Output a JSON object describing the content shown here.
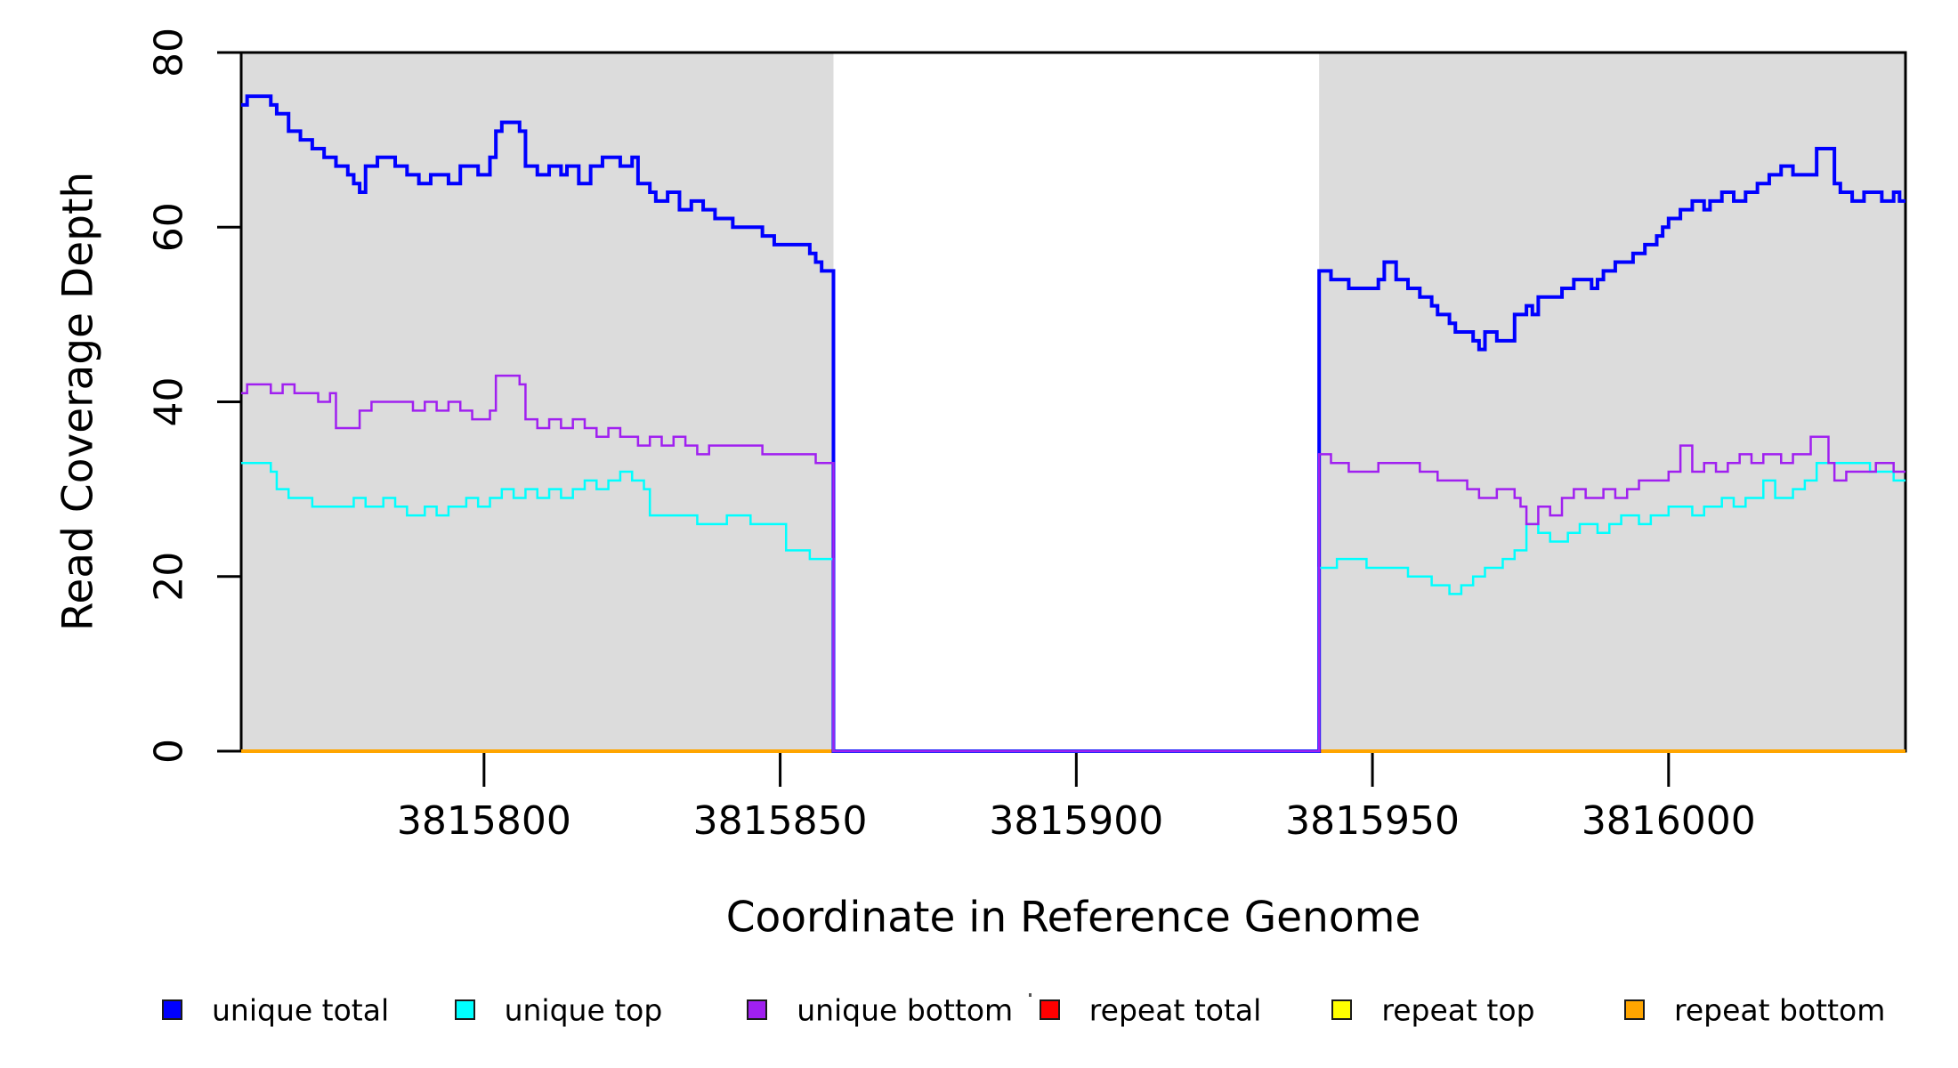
{
  "figure": {
    "background": "#FFFFFF"
  },
  "axes": {
    "y_title": "Read Coverage Depth",
    "x_title": "Coordinate in Reference Genome"
  },
  "legend": {
    "items": [
      {
        "label": "unique total",
        "color": "#0000FF"
      },
      {
        "label": "unique top",
        "color": "#00FFFF"
      },
      {
        "label": "unique bottom",
        "color": "#A020F0"
      },
      {
        "label": "repeat total",
        "color": "#FF0000"
      },
      {
        "label": "repeat top",
        "color": "#FFFF00"
      },
      {
        "label": "repeat bottom",
        "color": "#FFA500"
      }
    ]
  },
  "chart_data": {
    "type": "line",
    "subtype": "step",
    "title": "",
    "xlabel": "Coordinate in Reference Genome",
    "ylabel": "Read Coverage Depth",
    "x_range": [
      3815759,
      3816040
    ],
    "y_range": [
      0,
      80
    ],
    "x_ticks": [
      3815800,
      3815850,
      3815900,
      3815950,
      3816000
    ],
    "y_ticks": [
      0,
      20,
      40,
      60,
      80
    ],
    "grid": false,
    "legend_position": "bottom",
    "plot_background": "#FFFFFF",
    "highlight_regions": [
      {
        "start": 3815759,
        "end": 3815859,
        "color": "#DCDCDC"
      },
      {
        "start": 3815941,
        "end": 3816040,
        "color": "#DCDCDC"
      }
    ],
    "zero_coverage_gap": {
      "start": 3815859,
      "end": 3815941
    },
    "series": [
      {
        "name": "unique total",
        "color": "#0000FF",
        "line_width": 4,
        "points": [
          [
            3815759,
            74
          ],
          [
            3815760,
            75
          ],
          [
            3815764,
            74
          ],
          [
            3815765,
            73
          ],
          [
            3815767,
            71
          ],
          [
            3815769,
            70
          ],
          [
            3815771,
            69
          ],
          [
            3815773,
            68
          ],
          [
            3815775,
            67
          ],
          [
            3815777,
            66
          ],
          [
            3815778,
            65
          ],
          [
            3815779,
            64
          ],
          [
            3815780,
            67
          ],
          [
            3815782,
            68
          ],
          [
            3815785,
            67
          ],
          [
            3815787,
            66
          ],
          [
            3815789,
            65
          ],
          [
            3815791,
            66
          ],
          [
            3815794,
            65
          ],
          [
            3815796,
            67
          ],
          [
            3815799,
            66
          ],
          [
            3815801,
            68
          ],
          [
            3815802,
            71
          ],
          [
            3815803,
            72
          ],
          [
            3815806,
            71
          ],
          [
            3815807,
            67
          ],
          [
            3815809,
            66
          ],
          [
            3815811,
            67
          ],
          [
            3815813,
            66
          ],
          [
            3815814,
            67
          ],
          [
            3815816,
            65
          ],
          [
            3815818,
            67
          ],
          [
            3815820,
            68
          ],
          [
            3815823,
            67
          ],
          [
            3815825,
            68
          ],
          [
            3815826,
            65
          ],
          [
            3815828,
            64
          ],
          [
            3815829,
            63
          ],
          [
            3815831,
            64
          ],
          [
            3815833,
            62
          ],
          [
            3815835,
            63
          ],
          [
            3815837,
            62
          ],
          [
            3815839,
            61
          ],
          [
            3815842,
            60
          ],
          [
            3815845,
            60
          ],
          [
            3815847,
            59
          ],
          [
            3815849,
            58
          ],
          [
            3815853,
            58
          ],
          [
            3815855,
            57
          ],
          [
            3815856,
            56
          ],
          [
            3815857,
            55
          ],
          [
            3815859,
            0
          ],
          [
            3815941,
            55
          ],
          [
            3815943,
            54
          ],
          [
            3815946,
            53
          ],
          [
            3815951,
            54
          ],
          [
            3815952,
            56
          ],
          [
            3815954,
            54
          ],
          [
            3815956,
            53
          ],
          [
            3815958,
            52
          ],
          [
            3815960,
            51
          ],
          [
            3815961,
            50
          ],
          [
            3815963,
            49
          ],
          [
            3815964,
            48
          ],
          [
            3815967,
            47
          ],
          [
            3815968,
            46
          ],
          [
            3815969,
            48
          ],
          [
            3815971,
            47
          ],
          [
            3815974,
            50
          ],
          [
            3815976,
            51
          ],
          [
            3815977,
            50
          ],
          [
            3815978,
            52
          ],
          [
            3815982,
            53
          ],
          [
            3815984,
            54
          ],
          [
            3815987,
            53
          ],
          [
            3815988,
            54
          ],
          [
            3815989,
            55
          ],
          [
            3815991,
            56
          ],
          [
            3815994,
            57
          ],
          [
            3815996,
            58
          ],
          [
            3815998,
            59
          ],
          [
            3815999,
            60
          ],
          [
            3816000,
            61
          ],
          [
            3816002,
            62
          ],
          [
            3816004,
            63
          ],
          [
            3816006,
            62
          ],
          [
            3816007,
            63
          ],
          [
            3816009,
            64
          ],
          [
            3816011,
            63
          ],
          [
            3816013,
            64
          ],
          [
            3816015,
            65
          ],
          [
            3816017,
            66
          ],
          [
            3816019,
            67
          ],
          [
            3816021,
            66
          ],
          [
            3816025,
            69
          ],
          [
            3816028,
            65
          ],
          [
            3816029,
            64
          ],
          [
            3816031,
            63
          ],
          [
            3816033,
            64
          ],
          [
            3816036,
            63
          ],
          [
            3816038,
            64
          ],
          [
            3816039,
            63
          ]
        ]
      },
      {
        "name": "unique top",
        "color": "#00FFFF",
        "line_width": 2.5,
        "points": [
          [
            3815759,
            33
          ],
          [
            3815764,
            32
          ],
          [
            3815765,
            30
          ],
          [
            3815767,
            29
          ],
          [
            3815771,
            28
          ],
          [
            3815776,
            28
          ],
          [
            3815778,
            29
          ],
          [
            3815780,
            28
          ],
          [
            3815783,
            29
          ],
          [
            3815785,
            28
          ],
          [
            3815787,
            27
          ],
          [
            3815790,
            28
          ],
          [
            3815792,
            27
          ],
          [
            3815794,
            28
          ],
          [
            3815797,
            29
          ],
          [
            3815799,
            28
          ],
          [
            3815801,
            29
          ],
          [
            3815803,
            30
          ],
          [
            3815805,
            29
          ],
          [
            3815807,
            30
          ],
          [
            3815809,
            29
          ],
          [
            3815811,
            30
          ],
          [
            3815813,
            29
          ],
          [
            3815815,
            30
          ],
          [
            3815817,
            31
          ],
          [
            3815819,
            30
          ],
          [
            3815821,
            31
          ],
          [
            3815823,
            32
          ],
          [
            3815825,
            31
          ],
          [
            3815827,
            30
          ],
          [
            3815828,
            27
          ],
          [
            3815836,
            26
          ],
          [
            3815841,
            27
          ],
          [
            3815845,
            26
          ],
          [
            3815851,
            23
          ],
          [
            3815855,
            22
          ],
          [
            3815859,
            0
          ],
          [
            3815941,
            21
          ],
          [
            3815944,
            22
          ],
          [
            3815949,
            21
          ],
          [
            3815956,
            20
          ],
          [
            3815960,
            19
          ],
          [
            3815963,
            18
          ],
          [
            3815965,
            19
          ],
          [
            3815967,
            20
          ],
          [
            3815969,
            21
          ],
          [
            3815972,
            22
          ],
          [
            3815974,
            23
          ],
          [
            3815976,
            26
          ],
          [
            3815978,
            25
          ],
          [
            3815980,
            24
          ],
          [
            3815983,
            25
          ],
          [
            3815985,
            26
          ],
          [
            3815988,
            25
          ],
          [
            3815990,
            26
          ],
          [
            3815992,
            27
          ],
          [
            3815995,
            26
          ],
          [
            3815997,
            27
          ],
          [
            3816000,
            28
          ],
          [
            3816004,
            27
          ],
          [
            3816006,
            28
          ],
          [
            3816009,
            29
          ],
          [
            3816011,
            28
          ],
          [
            3816013,
            29
          ],
          [
            3816016,
            31
          ],
          [
            3816018,
            29
          ],
          [
            3816021,
            30
          ],
          [
            3816023,
            31
          ],
          [
            3816025,
            33
          ],
          [
            3816034,
            32
          ],
          [
            3816038,
            31
          ],
          [
            3816039,
            31
          ]
        ]
      },
      {
        "name": "unique bottom",
        "color": "#A020F0",
        "line_width": 2.5,
        "points": [
          [
            3815759,
            41
          ],
          [
            3815760,
            42
          ],
          [
            3815764,
            41
          ],
          [
            3815766,
            42
          ],
          [
            3815768,
            41
          ],
          [
            3815772,
            40
          ],
          [
            3815774,
            41
          ],
          [
            3815775,
            37
          ],
          [
            3815779,
            39
          ],
          [
            3815781,
            40
          ],
          [
            3815788,
            39
          ],
          [
            3815790,
            40
          ],
          [
            3815792,
            39
          ],
          [
            3815794,
            40
          ],
          [
            3815796,
            39
          ],
          [
            3815798,
            38
          ],
          [
            3815801,
            39
          ],
          [
            3815802,
            43
          ],
          [
            3815806,
            42
          ],
          [
            3815807,
            38
          ],
          [
            3815809,
            37
          ],
          [
            3815811,
            38
          ],
          [
            3815813,
            37
          ],
          [
            3815815,
            38
          ],
          [
            3815817,
            37
          ],
          [
            3815819,
            36
          ],
          [
            3815821,
            37
          ],
          [
            3815823,
            36
          ],
          [
            3815826,
            35
          ],
          [
            3815828,
            36
          ],
          [
            3815830,
            35
          ],
          [
            3815832,
            36
          ],
          [
            3815834,
            35
          ],
          [
            3815836,
            34
          ],
          [
            3815838,
            35
          ],
          [
            3815843,
            35
          ],
          [
            3815847,
            34
          ],
          [
            3815856,
            33
          ],
          [
            3815859,
            0
          ],
          [
            3815941,
            34
          ],
          [
            3815943,
            33
          ],
          [
            3815946,
            32
          ],
          [
            3815951,
            33
          ],
          [
            3815958,
            32
          ],
          [
            3815961,
            31
          ],
          [
            3815966,
            30
          ],
          [
            3815968,
            29
          ],
          [
            3815971,
            30
          ],
          [
            3815974,
            29
          ],
          [
            3815975,
            28
          ],
          [
            3815976,
            26
          ],
          [
            3815978,
            28
          ],
          [
            3815980,
            27
          ],
          [
            3815982,
            29
          ],
          [
            3815984,
            30
          ],
          [
            3815986,
            29
          ],
          [
            3815989,
            30
          ],
          [
            3815991,
            29
          ],
          [
            3815993,
            30
          ],
          [
            3815995,
            31
          ],
          [
            3815998,
            31
          ],
          [
            3816000,
            32
          ],
          [
            3816002,
            35
          ],
          [
            3816004,
            32
          ],
          [
            3816006,
            33
          ],
          [
            3816008,
            32
          ],
          [
            3816010,
            33
          ],
          [
            3816012,
            34
          ],
          [
            3816014,
            33
          ],
          [
            3816016,
            34
          ],
          [
            3816019,
            33
          ],
          [
            3816021,
            34
          ],
          [
            3816024,
            36
          ],
          [
            3816027,
            33
          ],
          [
            3816028,
            31
          ],
          [
            3816030,
            32
          ],
          [
            3816033,
            32
          ],
          [
            3816035,
            33
          ],
          [
            3816038,
            32
          ],
          [
            3816039,
            32
          ]
        ]
      },
      {
        "name": "repeat total",
        "color": "#FF0000",
        "line_width": 3,
        "points": [
          [
            3815759,
            0
          ],
          [
            3816040,
            0
          ]
        ]
      },
      {
        "name": "repeat top",
        "color": "#FFFF00",
        "line_width": 3,
        "points": [
          [
            3815759,
            0
          ],
          [
            3816040,
            0
          ]
        ]
      },
      {
        "name": "repeat bottom",
        "color": "#FFA500",
        "line_width": 4,
        "points": [
          [
            3815759,
            0
          ],
          [
            3816040,
            0
          ]
        ]
      }
    ]
  }
}
